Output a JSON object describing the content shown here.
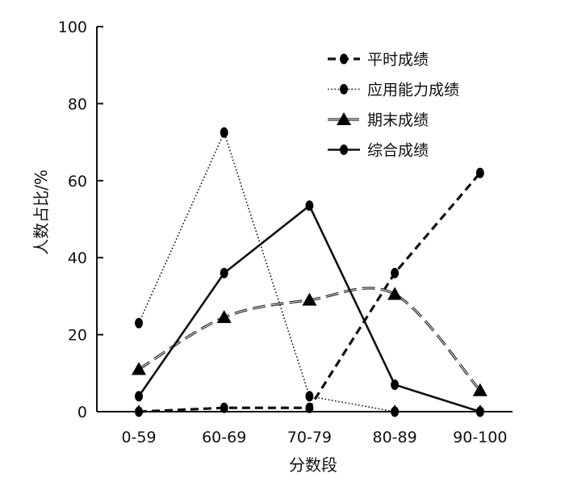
{
  "chart_data": {
    "type": "line",
    "title": "",
    "xlabel": "分数段",
    "ylabel": "人数占比/%",
    "categories": [
      "0-59",
      "60-69",
      "70-79",
      "80-89",
      "90-100"
    ],
    "ylim": [
      0,
      100
    ],
    "yticks": [
      0,
      20,
      40,
      60,
      80,
      100
    ],
    "grid": false,
    "legend_position": "top-right",
    "series": [
      {
        "name": "平时成绩",
        "values": [
          0,
          1,
          1,
          36,
          62
        ],
        "style": "dashed-heavy",
        "marker": "circle",
        "smooth": false
      },
      {
        "name": "应用能力成绩",
        "values": [
          23,
          72.5,
          4,
          0,
          0
        ],
        "style": "dotted",
        "marker": "circle",
        "smooth": false
      },
      {
        "name": "期末成绩",
        "values": [
          11,
          24.5,
          29,
          30.5,
          5.5
        ],
        "style": "dashed-double",
        "marker": "triangle",
        "smooth": true
      },
      {
        "name": "综合成绩",
        "values": [
          4,
          36,
          53.5,
          7,
          0
        ],
        "style": "solid",
        "marker": "circle",
        "smooth": false
      }
    ]
  }
}
